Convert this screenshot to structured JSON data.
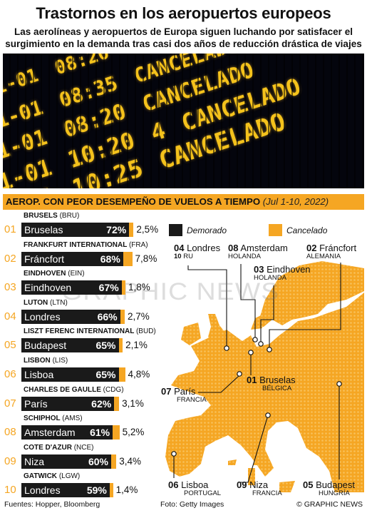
{
  "title": "Trastornos en los aeropuertos europeos",
  "subtitle": "Las aerolíneas y aeropuertos de Europa siguen luchando por satisfacer el surgimiento en la demanda tras casi dos años de reducción drástica de viajes",
  "photo": {
    "rows": [
      [
        "01-01",
        "08:20",
        "CANCELADO"
      ],
      [
        "01-01",
        "08:35",
        "CANCELADO"
      ],
      [
        "01-01",
        "08:20",
        "CANCELADO"
      ],
      [
        "01-01",
        "10:20",
        "4",
        "CANCELADO"
      ],
      [
        "01-01",
        "10:25",
        "CANCELADO"
      ]
    ]
  },
  "chart_header": {
    "title": "AEROP. CON PEOR DESEMPEÑO DE VUELOS A TIEMPO",
    "range": "(Jul 1-10, 2022)"
  },
  "legend": {
    "delayed": "Demorado",
    "cancelled": "Cancelado",
    "delayed_color": "#1a1a1a",
    "cancelled_color": "#f5a623"
  },
  "chart_data": {
    "type": "bar",
    "title": "AEROP. CON PEOR DESEMPEÑO DE VUELOS A TIEMPO",
    "subtitle": "(Jul 1-10, 2022)",
    "series": [
      {
        "name": "Demorado",
        "values": [
          72,
          68,
          67,
          66,
          65,
          65,
          62,
          61,
          60,
          59
        ]
      },
      {
        "name": "Cancelado",
        "values": [
          2.5,
          7.8,
          1.8,
          2.7,
          2.1,
          4.8,
          3.1,
          5.2,
          3.4,
          1.4
        ]
      }
    ],
    "rows": [
      {
        "rank": "01",
        "airport": "BRUSELS",
        "code": "(BRU)",
        "city": "Bruselas",
        "delayed_label": "72%",
        "cancelled_label": "2,5%"
      },
      {
        "rank": "02",
        "airport": "FRANKFURT INTERNATIONAL",
        "code": "(FRA)",
        "city": "Fráncfort",
        "delayed_label": "68%",
        "cancelled_label": "7,8%"
      },
      {
        "rank": "03",
        "airport": "EINDHOVEN",
        "code": "(EIN)",
        "city": "Eindhoven",
        "delayed_label": "67%",
        "cancelled_label": "1,8%"
      },
      {
        "rank": "04",
        "airport": "LUTON",
        "code": "(LTN)",
        "city": "Londres",
        "delayed_label": "66%",
        "cancelled_label": "2,7%"
      },
      {
        "rank": "05",
        "airport": "LISZT FERENC INTERNATIONAL",
        "code": "(BUD)",
        "city": "Budapest",
        "delayed_label": "65%",
        "cancelled_label": "2,1%"
      },
      {
        "rank": "06",
        "airport": "LISBON",
        "code": "(LIS)",
        "city": "Lisboa",
        "delayed_label": "65%",
        "cancelled_label": "4,8%"
      },
      {
        "rank": "07",
        "airport": "CHARLES DE GAULLE",
        "code": "(CDG)",
        "city": "París",
        "delayed_label": "62%",
        "cancelled_label": "3,1%"
      },
      {
        "rank": "08",
        "airport": "SCHIPHOL",
        "code": "(AMS)",
        "city": "Amsterdam",
        "delayed_label": "61%",
        "cancelled_label": "5,2%"
      },
      {
        "rank": "09",
        "airport": "COTE D'AZUR",
        "code": "(NCE)",
        "city": "Niza",
        "delayed_label": "60%",
        "cancelled_label": "3,4%"
      },
      {
        "rank": "10",
        "airport": "GATWICK",
        "code": "(LGW)",
        "city": "Londres",
        "delayed_label": "59%",
        "cancelled_label": "1,4%"
      }
    ]
  },
  "map": {
    "labels": [
      {
        "num": "04",
        "city": "Londres",
        "country": "",
        "num2": "10",
        "country2": "RU"
      },
      {
        "num": "08",
        "city": "Amsterdam",
        "country": "HOLANDA"
      },
      {
        "num": "02",
        "city": "Fráncfort",
        "country": "ALEMANIA"
      },
      {
        "num": "03",
        "city": "Eindhoven",
        "country": "HOLANDA"
      },
      {
        "num": "01",
        "city": "Bruselas",
        "country": "BÉLGICA"
      },
      {
        "num": "07",
        "city": "París",
        "country": "FRANCIA"
      },
      {
        "num": "06",
        "city": "Lisboa",
        "country": "PORTUGAL"
      },
      {
        "num": "09",
        "city": "Niza",
        "country": "FRANCIA"
      },
      {
        "num": "05",
        "city": "Budapest",
        "country": "HUNGRÍA"
      }
    ],
    "land_color": "#f5a623",
    "sea_color": "#ffffff"
  },
  "watermark": "GRAPHIC NEWS",
  "footer": {
    "sources": "Fuentes: Hopper, Bloomberg",
    "photo_credit": "Foto: Getty Images",
    "copyright": "© GRAPHIC NEWS"
  }
}
